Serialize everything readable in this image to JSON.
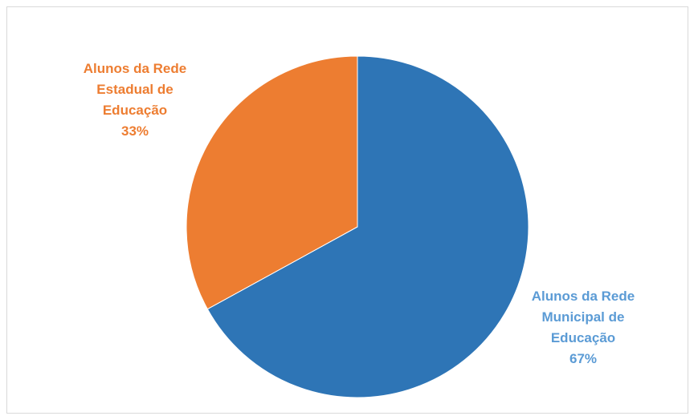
{
  "chart_data": {
    "type": "pie",
    "title": "",
    "slices": [
      {
        "name": "Alunos da Rede Municipal de Educação",
        "label_lines": [
          "Alunos da Rede",
          "Municipal de",
          "Educação"
        ],
        "percent_label": "67%",
        "value": 67,
        "color": "#2E75B6"
      },
      {
        "name": "Alunos da Rede Estadual de Educação",
        "label_lines": [
          "Alunos da Rede",
          "Estadual de",
          "Educação"
        ],
        "percent_label": "33%",
        "value": 33,
        "color": "#ED7D31"
      }
    ],
    "start_angle_deg": 0,
    "direction": "clockwise",
    "legend": "none"
  },
  "colors": {
    "municipal_label": "#5B9BD5",
    "estadual_label": "#ED7D31"
  }
}
